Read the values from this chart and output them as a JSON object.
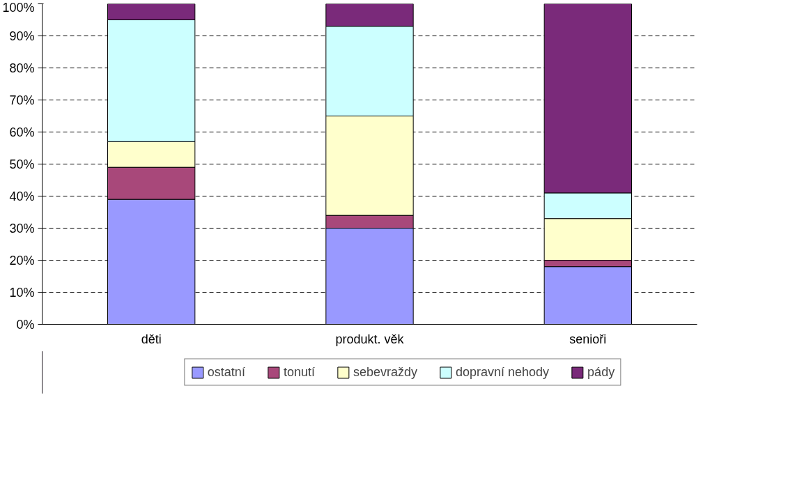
{
  "chart_data": {
    "type": "bar",
    "stacked": true,
    "categories": [
      "děti",
      "produkt. věk",
      "senioři"
    ],
    "series": [
      {
        "name": "ostatní",
        "color": "#9999ff",
        "values": [
          39,
          30,
          18
        ]
      },
      {
        "name": "tonutí",
        "color": "#a8487a",
        "values": [
          10,
          4,
          2
        ]
      },
      {
        "name": "sebevraždy",
        "color": "#ffffcc",
        "values": [
          8,
          31,
          13
        ]
      },
      {
        "name": "dopravní nehody",
        "color": "#ccffff",
        "values": [
          38,
          28,
          8
        ]
      },
      {
        "name": "pády",
        "color": "#7a2a7a",
        "values": [
          5,
          7,
          59
        ]
      }
    ],
    "ylim": [
      0,
      100
    ],
    "yticks": [
      {
        "value": 0,
        "label": "0%"
      },
      {
        "value": 10,
        "label": "10%"
      },
      {
        "value": 20,
        "label": "20%"
      },
      {
        "value": 30,
        "label": "30%"
      },
      {
        "value": 40,
        "label": "40%"
      },
      {
        "value": 50,
        "label": "50%"
      },
      {
        "value": 60,
        "label": "60%"
      },
      {
        "value": 70,
        "label": "70%"
      },
      {
        "value": 80,
        "label": "80%"
      },
      {
        "value": 90,
        "label": "90%"
      },
      {
        "value": 100,
        "label": "100%"
      }
    ],
    "grid": "y",
    "legend": "bottom"
  }
}
